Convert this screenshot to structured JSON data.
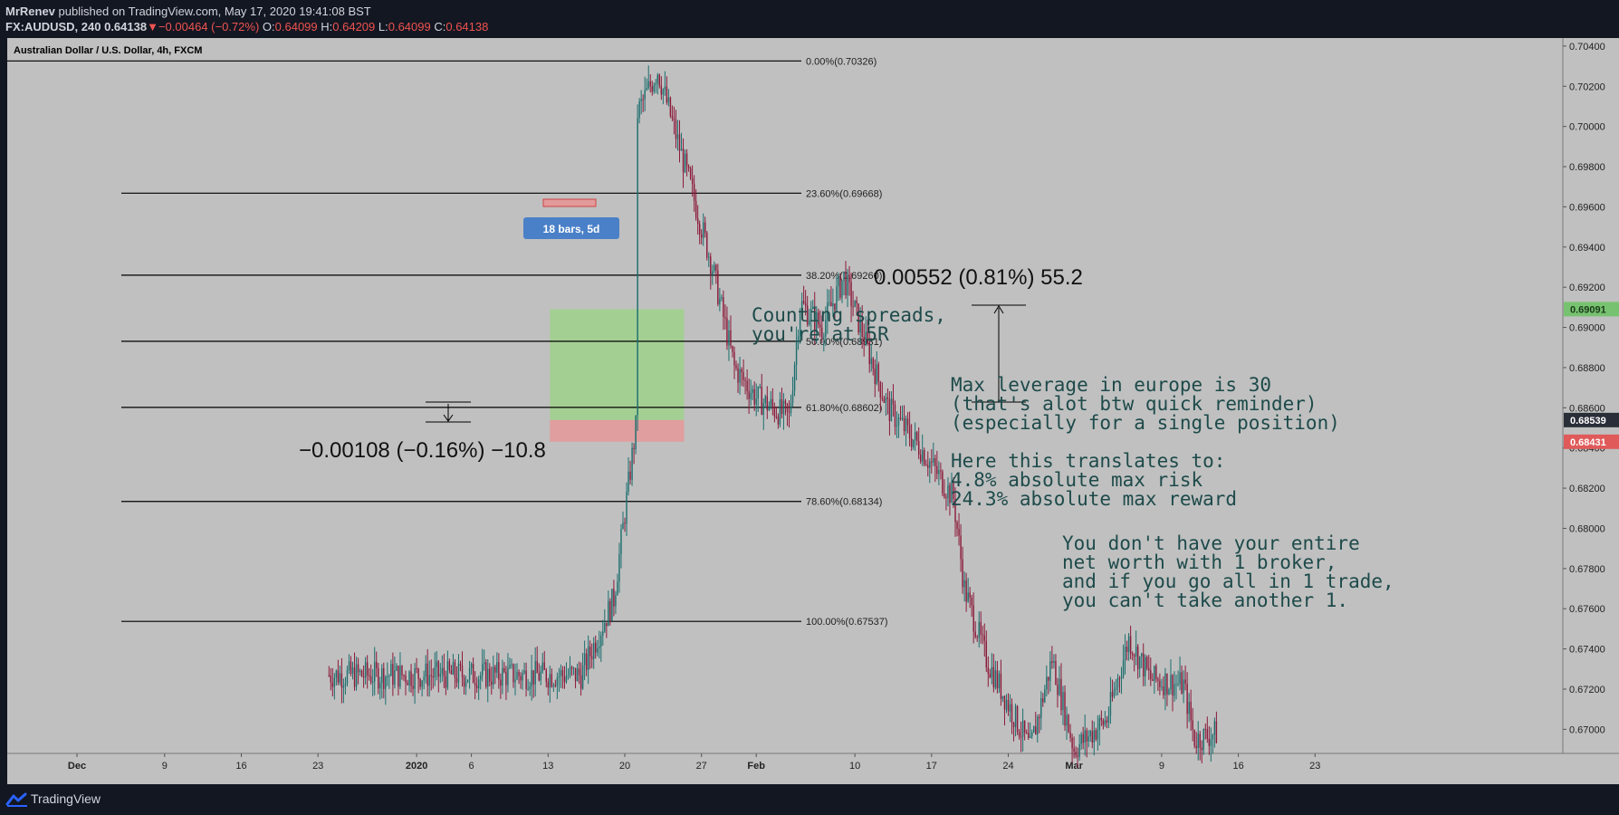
{
  "header": {
    "author": "MrRenev",
    "published_text": "published on TradingView.com, May 17, 2020 19:41:08 BST",
    "symbol": "FX:AUDUSD, 240",
    "last": "0.64138",
    "change_arrow": "▼",
    "change": "−0.00464 (−0.72%)",
    "o_label": "O:",
    "o": "0.64099",
    "h_label": "H:",
    "h": "0.64209",
    "l_label": "L:",
    "l": "0.64099",
    "c_label": "C:",
    "c": "0.64138"
  },
  "footer": {
    "brand": "TradingView"
  },
  "colors": {
    "chart_bg": "#c0c0c0",
    "up_candle": "#1d6e6e",
    "down_candle": "#8b1a3a",
    "fib_line": "#000000",
    "long_target": "#9fd18b",
    "long_stop": "#e39a9a",
    "green_label": "#77c270",
    "red_label": "#e05a5a",
    "dark_label": "#2a2e39",
    "bars_label": "#4a80c8",
    "annotation_text": "#1e4a4a"
  },
  "chart_data": {
    "type": "candlestick",
    "title": "Australian Dollar / U.S. Dollar, 4h, FXCM",
    "x_ticks": [
      "Dec",
      "9",
      "16",
      "23",
      "2020",
      "6",
      "13",
      "20",
      "27",
      "Feb",
      "10",
      "17",
      "24",
      "Mar",
      "9",
      "16",
      "23"
    ],
    "y_ticks": [
      "0.70400",
      "0.70200",
      "0.70000",
      "0.69800",
      "0.69600",
      "0.69400",
      "0.69200",
      "0.69000",
      "0.68800",
      "0.68600",
      "0.68400",
      "0.68200",
      "0.68000",
      "0.67800",
      "0.67600",
      "0.67400",
      "0.67200",
      "0.67000"
    ],
    "ylim": [
      0.6688,
      0.7044
    ],
    "fib_levels": [
      {
        "label": "0.00%(0.70326)",
        "value": 0.70326
      },
      {
        "label": "23.60%(0.69668)",
        "value": 0.69668
      },
      {
        "label": "38.20%(0.69260)",
        "value": 0.6926
      },
      {
        "label": "50.00%(0.68931)",
        "value": 0.68931
      },
      {
        "label": "61.80%(0.68602)",
        "value": 0.68602
      },
      {
        "label": "78.60%(0.68134)",
        "value": 0.68134
      },
      {
        "label": "100.00%(0.67537)",
        "value": 0.67537
      }
    ],
    "price_labels": [
      {
        "text": "0.69091",
        "value": 0.69091,
        "color": "green"
      },
      {
        "text": "0.68539",
        "value": 0.68539,
        "color": "dark"
      },
      {
        "text": "0.68431",
        "value": 0.68431,
        "color": "red"
      }
    ],
    "position": {
      "entry": 0.68539,
      "target": 0.69091,
      "stop": 0.68431
    },
    "bars_label": "18 bars, 5d",
    "measure_up": "0.00552 (0.81%) 55.2",
    "measure_down": "−0.00108 (−0.16%) −10.8",
    "anchors": [
      {
        "x": "Nov 25",
        "y": 0.6727
      },
      {
        "x": "Nov 28",
        "y": 0.6765
      },
      {
        "x": "Nov 30",
        "y": 0.685
      },
      {
        "x": "Dec 4",
        "y": 0.6845
      },
      {
        "x": "Dec 9",
        "y": 0.6835
      },
      {
        "x": "Dec 12",
        "y": 0.681
      },
      {
        "x": "Dec 14",
        "y": 0.693
      },
      {
        "x": "Dec 17",
        "y": 0.6855
      },
      {
        "x": "Dec 19",
        "y": 0.6845
      },
      {
        "x": "Dec 21",
        "y": 0.6885
      },
      {
        "x": "Dec 24",
        "y": 0.692
      },
      {
        "x": "Dec 26",
        "y": 0.694
      },
      {
        "x": "Dec 29",
        "y": 0.7005
      },
      {
        "x": "Dec 31",
        "y": 0.7028
      },
      {
        "x": "Jan 3",
        "y": 0.697
      },
      {
        "x": "Jan 5",
        "y": 0.693
      },
      {
        "x": "Jan 7",
        "y": 0.688
      },
      {
        "x": "Jan 9",
        "y": 0.6865
      },
      {
        "x": "Jan 12",
        "y": 0.6855
      },
      {
        "x": "Jan 13",
        "y": 0.6912
      },
      {
        "x": "Jan 15",
        "y": 0.69
      },
      {
        "x": "Jan 17",
        "y": 0.6925
      },
      {
        "x": "Jan 19",
        "y": 0.6892
      },
      {
        "x": "Jan 21",
        "y": 0.686
      },
      {
        "x": "Jan 24",
        "y": 0.684
      },
      {
        "x": "Jan 27",
        "y": 0.6815
      },
      {
        "x": "Jan 28",
        "y": 0.677
      },
      {
        "x": "Jan 30",
        "y": 0.6735
      },
      {
        "x": "Feb 3",
        "y": 0.669
      },
      {
        "x": "Feb 5",
        "y": 0.6735
      },
      {
        "x": "Feb 7",
        "y": 0.669
      },
      {
        "x": "Feb 10",
        "y": 0.6705
      },
      {
        "x": "Feb 12",
        "y": 0.6745
      },
      {
        "x": "Feb 14",
        "y": 0.6725
      },
      {
        "x": "Feb 17",
        "y": 0.6722
      },
      {
        "x": "Feb 18",
        "y": 0.6695
      },
      {
        "x": "Feb 20",
        "y": 0.6698
      }
    ]
  },
  "annotations": {
    "counting_spreads": [
      "Counting spreads,",
      "you're at 5R"
    ],
    "max_leverage": [
      "Max leverage in europe is 30",
      "(that's alot btw quick reminder)",
      "(especially for a single position)",
      "",
      "Here this translates to:",
      "4.8% absolute max risk",
      "24.3% absolute max reward"
    ],
    "net_worth": [
      "You don't have your entire",
      "net worth with 1 broker,",
      "and if you go all in 1 trade,",
      "you can't take another 1."
    ]
  }
}
